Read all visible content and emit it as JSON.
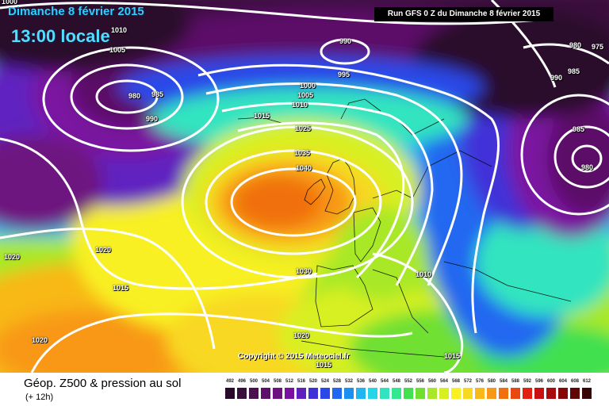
{
  "header": {
    "date_title": "Dimanche 8 février 2015",
    "time_title": "13:00 locale",
    "run_info": "Run GFS 0 Z du Dimanche 8 février 2015"
  },
  "copyright": "Copyright © 2015 Meteociel.fr",
  "legend": {
    "title": "Géop. Z500 & pression au sol",
    "subtitle": "(+ 12h)",
    "scale": [
      {
        "label": "492",
        "color": "#2a0a2a"
      },
      {
        "label": "496",
        "color": "#3a0e3c"
      },
      {
        "label": "500",
        "color": "#4a1050"
      },
      {
        "label": "504",
        "color": "#5c1068"
      },
      {
        "label": "508",
        "color": "#6e1280"
      },
      {
        "label": "512",
        "color": "#7a12a0"
      },
      {
        "label": "516",
        "color": "#6020c0"
      },
      {
        "label": "520",
        "color": "#4030d8"
      },
      {
        "label": "524",
        "color": "#2c48e8"
      },
      {
        "label": "528",
        "color": "#2068f0"
      },
      {
        "label": "532",
        "color": "#1c90f0"
      },
      {
        "label": "536",
        "color": "#20b4f0"
      },
      {
        "label": "540",
        "color": "#28d4e8"
      },
      {
        "label": "544",
        "color": "#30e4c0"
      },
      {
        "label": "548",
        "color": "#30e890"
      },
      {
        "label": "552",
        "color": "#40e050"
      },
      {
        "label": "556",
        "color": "#70e030"
      },
      {
        "label": "560",
        "color": "#a8e828"
      },
      {
        "label": "564",
        "color": "#d8f020"
      },
      {
        "label": "568",
        "color": "#f8f020"
      },
      {
        "label": "572",
        "color": "#f8d820"
      },
      {
        "label": "576",
        "color": "#f8b818"
      },
      {
        "label": "580",
        "color": "#f89818"
      },
      {
        "label": "584",
        "color": "#f07010"
      },
      {
        "label": "588",
        "color": "#e84810"
      },
      {
        "label": "592",
        "color": "#e02010"
      },
      {
        "label": "596",
        "color": "#c81010"
      },
      {
        "label": "600",
        "color": "#a80c0c"
      },
      {
        "label": "604",
        "color": "#880808"
      },
      {
        "label": "608",
        "color": "#600606"
      },
      {
        "label": "612",
        "color": "#380404"
      }
    ]
  },
  "isobars": [
    {
      "v": "1010"
    },
    {
      "v": "1005"
    },
    {
      "v": "1000"
    },
    {
      "v": "980"
    },
    {
      "v": "985"
    },
    {
      "v": "990"
    },
    {
      "v": "990"
    },
    {
      "v": "995"
    },
    {
      "v": "1000"
    },
    {
      "v": "1005"
    },
    {
      "v": "1010"
    },
    {
      "v": "1015"
    },
    {
      "v": "1025"
    },
    {
      "v": "1035"
    },
    {
      "v": "1040"
    },
    {
      "v": "980"
    },
    {
      "v": "975"
    },
    {
      "v": "990"
    },
    {
      "v": "985"
    },
    {
      "v": "985"
    },
    {
      "v": "980"
    },
    {
      "v": "1020"
    },
    {
      "v": "1020"
    },
    {
      "v": "1015"
    },
    {
      "v": "1030"
    },
    {
      "v": "1010"
    },
    {
      "v": "1020"
    },
    {
      "v": "1020"
    },
    {
      "v": "1015"
    },
    {
      "v": "1015"
    }
  ]
}
